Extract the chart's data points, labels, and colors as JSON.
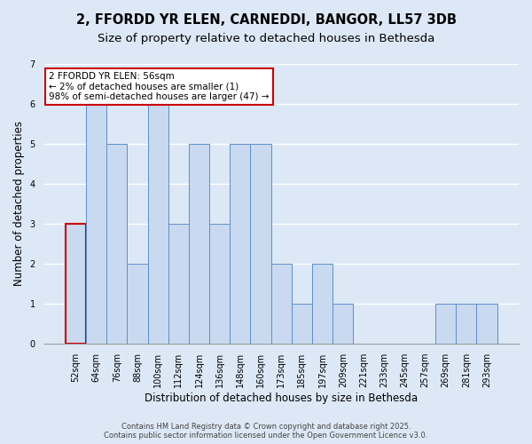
{
  "title1": "2, FFORDD YR ELEN, CARNEDDI, BANGOR, LL57 3DB",
  "title2": "Size of property relative to detached houses in Bethesda",
  "xlabel": "Distribution of detached houses by size in Bethesda",
  "ylabel": "Number of detached properties",
  "categories": [
    "52sqm",
    "64sqm",
    "76sqm",
    "88sqm",
    "100sqm",
    "112sqm",
    "124sqm",
    "136sqm",
    "148sqm",
    "160sqm",
    "173sqm",
    "185sqm",
    "197sqm",
    "209sqm",
    "221sqm",
    "233sqm",
    "245sqm",
    "257sqm",
    "269sqm",
    "281sqm",
    "293sqm"
  ],
  "values": [
    3,
    6,
    5,
    2,
    6,
    3,
    5,
    3,
    5,
    5,
    2,
    1,
    2,
    1,
    0,
    0,
    0,
    0,
    1,
    1,
    1
  ],
  "highlight_index": 0,
  "bar_color": "#c9d9ef",
  "bar_edge_color": "#5b8fcb",
  "highlight_edge_color": "#cc0000",
  "annotation_box_color": "#ffffff",
  "annotation_edge_color": "#cc0000",
  "annotation_text": "2 FFORDD YR ELEN: 56sqm\n← 2% of detached houses are smaller (1)\n98% of semi-detached houses are larger (47) →",
  "ylim": [
    0,
    7
  ],
  "yticks": [
    0,
    1,
    2,
    3,
    4,
    5,
    6,
    7
  ],
  "background_color": "#dce8f5",
  "grid_color": "#ffffff",
  "footer": "Contains HM Land Registry data © Crown copyright and database right 2025.\nContains public sector information licensed under the Open Government Licence v3.0.",
  "title1_fontsize": 10.5,
  "title2_fontsize": 9.5,
  "xlabel_fontsize": 8.5,
  "ylabel_fontsize": 8.5,
  "tick_fontsize": 7,
  "annotation_fontsize": 7.5,
  "footer_fontsize": 6
}
